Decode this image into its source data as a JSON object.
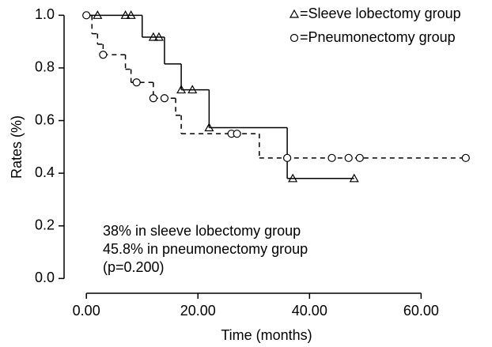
{
  "chart_data": {
    "type": "step",
    "x_label": "Time (months)",
    "y_label": "Rates (%)",
    "xlim": [
      -4,
      72
    ],
    "ylim": [
      -0.056,
      1.04
    ],
    "xticks": [
      {
        "value": 0,
        "label": "0.00"
      },
      {
        "value": 20,
        "label": "20.00"
      },
      {
        "value": 40,
        "label": "40.00"
      },
      {
        "value": 60,
        "label": "60.00"
      }
    ],
    "yticks": [
      {
        "value": 0,
        "label": "0.0"
      },
      0.2,
      0.4,
      0.6,
      0.8,
      {
        "value": 1,
        "label": "1.0"
      }
    ],
    "legend": "top-right",
    "series": [
      {
        "name": "=Sleeve lobectomy group",
        "marker": "triangle",
        "dash": "solid",
        "color": "#000000",
        "x": [
          0,
          10,
          14,
          17,
          22,
          36,
          48
        ],
        "values": [
          1.0,
          0.917,
          0.815,
          0.717,
          0.573,
          0.38,
          0.38
        ],
        "censor_x": [
          2,
          7,
          8,
          12,
          13,
          17,
          19,
          22,
          37,
          48
        ],
        "censor_values": [
          1.0,
          1.0,
          1.0,
          0.917,
          0.917,
          0.717,
          0.717,
          0.573,
          0.38,
          0.38
        ]
      },
      {
        "name": "=Pneumonectomy group",
        "marker": "circle",
        "dash": "dashed",
        "color": "#000000",
        "x": [
          0,
          1,
          2,
          3,
          7,
          8,
          12,
          16,
          17,
          31,
          68
        ],
        "values": [
          1.0,
          0.93,
          0.89,
          0.85,
          0.795,
          0.745,
          0.685,
          0.62,
          0.55,
          0.458,
          0.458
        ],
        "censor_x": [
          0,
          3,
          9,
          12,
          14,
          26,
          27,
          36,
          44,
          47,
          49,
          68
        ],
        "censor_values": [
          1.0,
          0.85,
          0.745,
          0.685,
          0.685,
          0.55,
          0.55,
          0.458,
          0.458,
          0.458,
          0.458,
          0.458
        ]
      }
    ],
    "annotations": [
      "38% in sleeve lobectomy group",
      "45.8% in pneumonectomy group",
      "(p=0.200)"
    ]
  }
}
